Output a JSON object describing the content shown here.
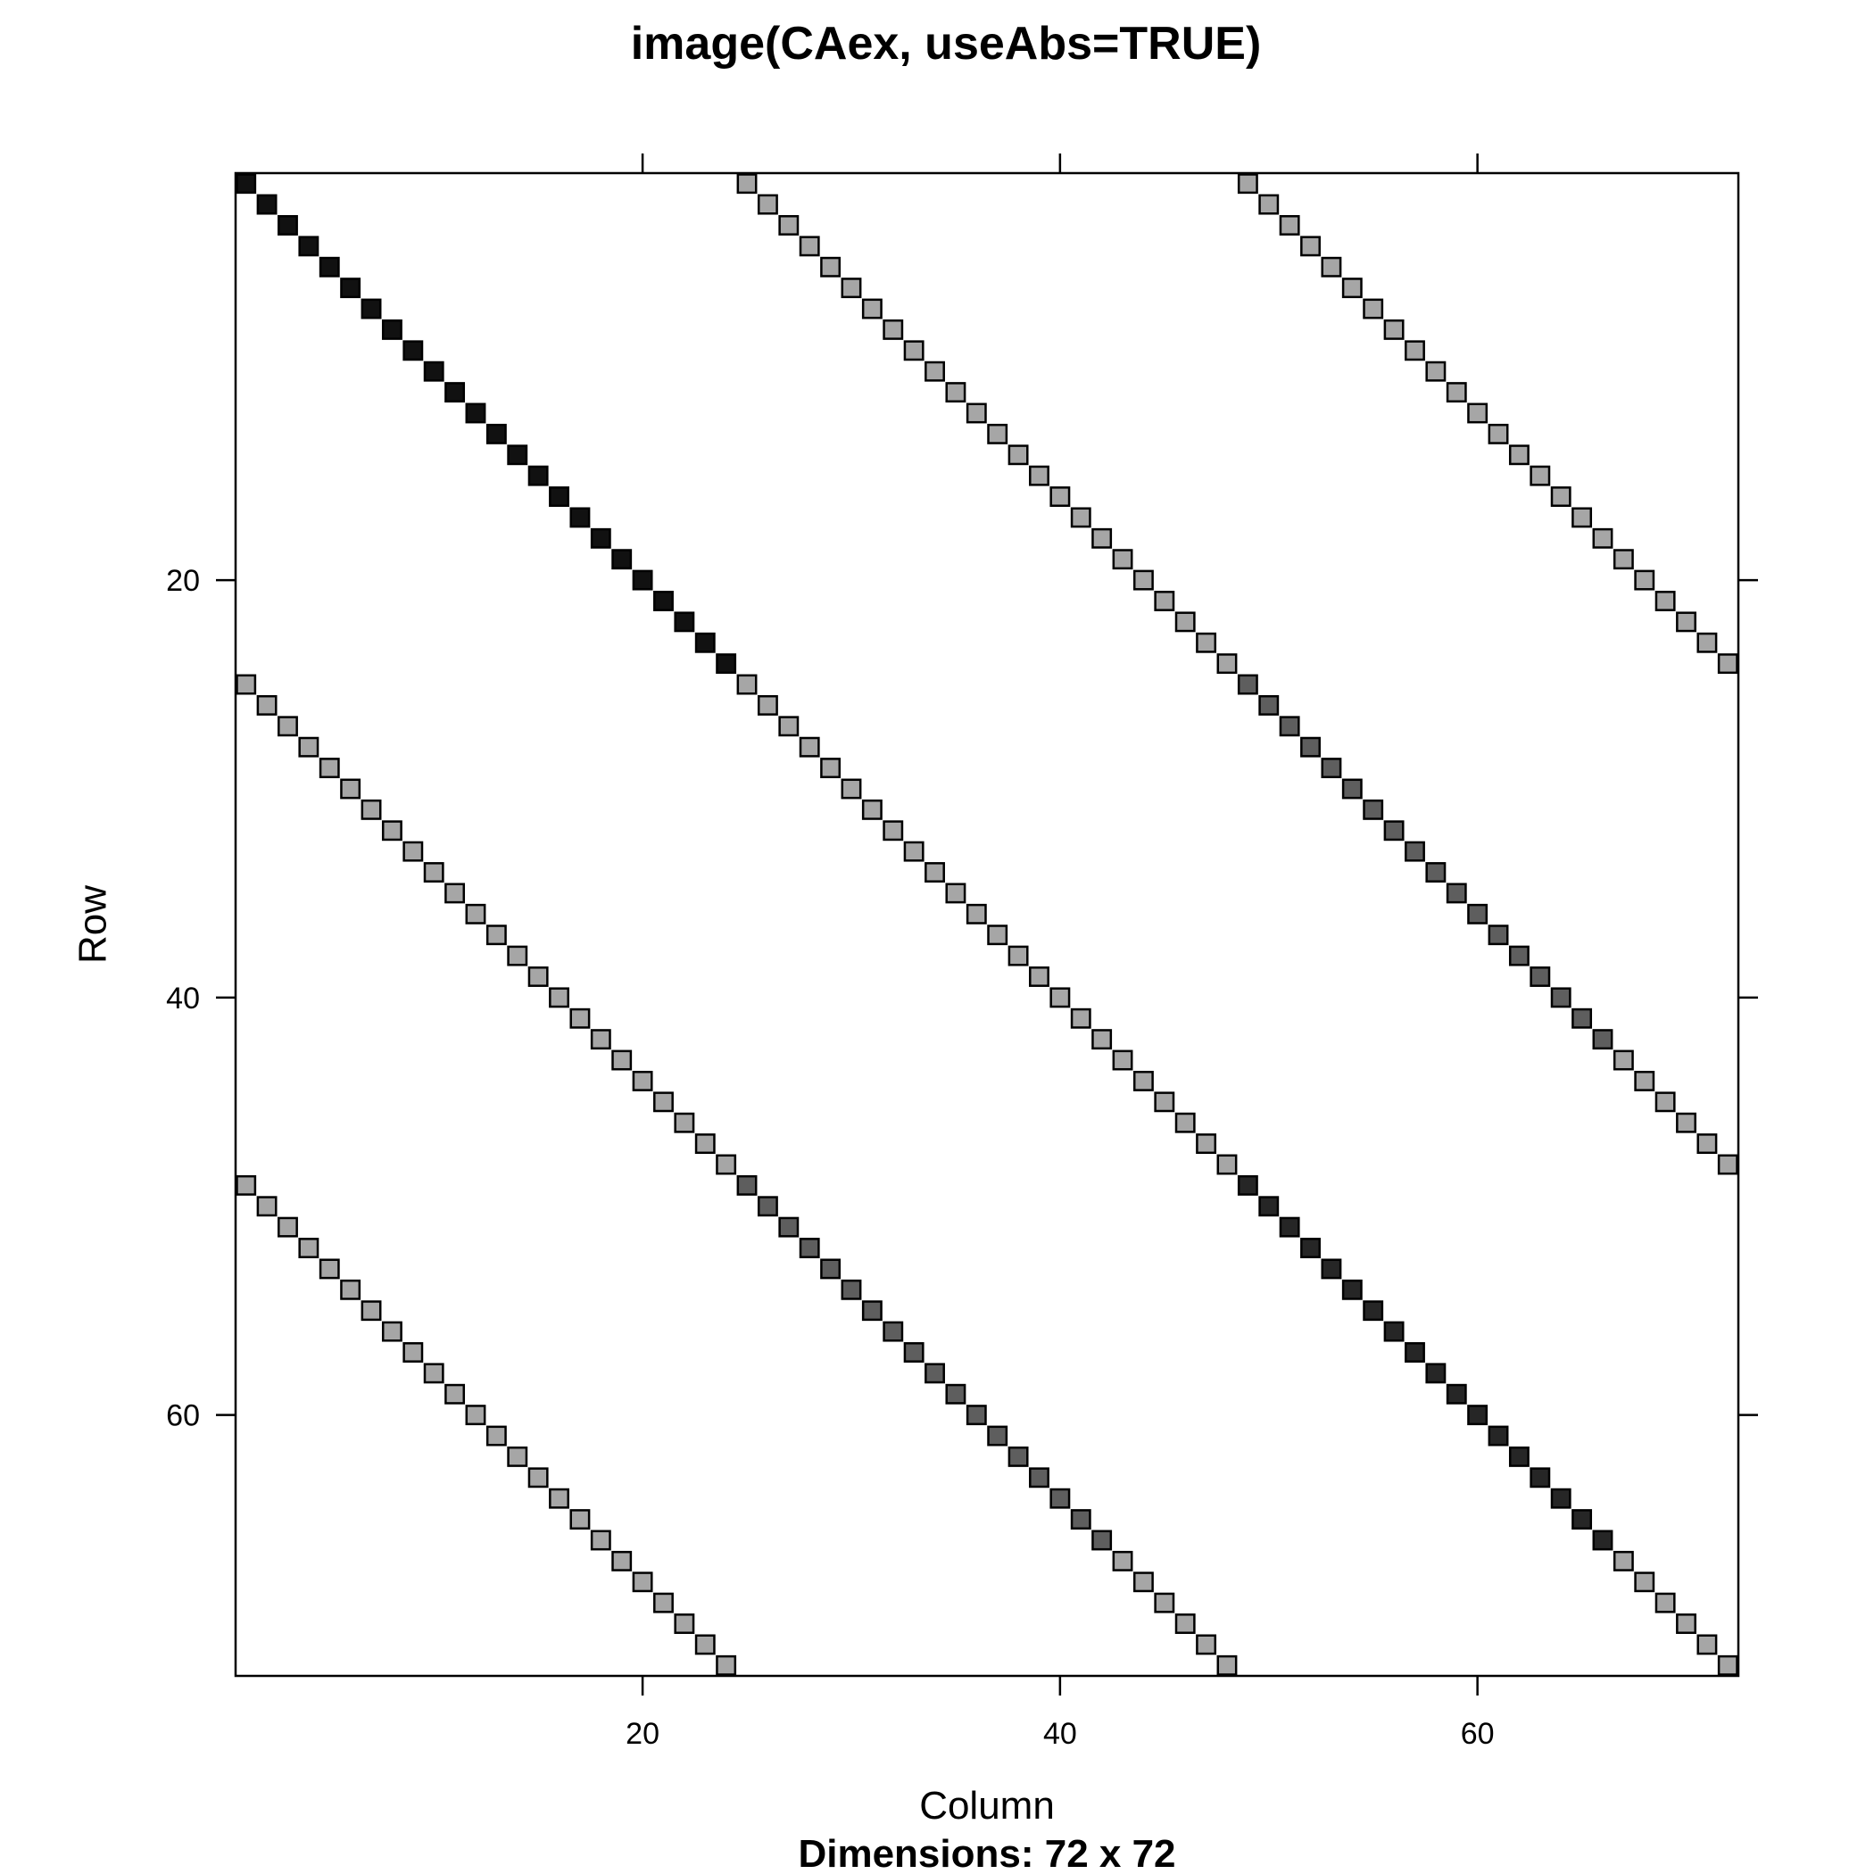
{
  "chart_data": {
    "type": "heatmap",
    "title": "image(CAex, useAbs=TRUE)",
    "xlabel": "Column",
    "ylabel": "Row",
    "sublabel": "Dimensions: 72 x 72",
    "nrow": 72,
    "ncol": 72,
    "x_ticks": [
      "20",
      "40",
      "60"
    ],
    "y_ticks": [
      "20",
      "40",
      "60"
    ],
    "x_tick_values": [
      20,
      40,
      60
    ],
    "y_tick_values": [
      20,
      40,
      60
    ],
    "colors": {
      "level_high": "#111111",
      "level_high_2": "#262626",
      "level_mid": "#5e5e5e",
      "level_low": "#a6a6a6",
      "cell_border": "#000000",
      "frame": "#000000"
    },
    "bands": [
      {
        "offset": 0,
        "segments": [
          [
            1,
            24,
            "level_high"
          ],
          [
            25,
            48,
            "level_low"
          ],
          [
            49,
            66,
            "level_high_2"
          ],
          [
            67,
            72,
            "level_low"
          ]
        ]
      },
      {
        "offset": 24,
        "segments": [
          [
            1,
            24,
            "level_low"
          ],
          [
            25,
            42,
            "level_mid"
          ],
          [
            43,
            48,
            "level_low"
          ]
        ]
      },
      {
        "offset": -24,
        "segments": [
          [
            1,
            24,
            "level_low"
          ],
          [
            25,
            42,
            "level_mid"
          ],
          [
            43,
            48,
            "level_low"
          ]
        ]
      },
      {
        "offset": 48,
        "segments": [
          [
            1,
            24,
            "level_low"
          ]
        ]
      },
      {
        "offset": -48,
        "segments": [
          [
            1,
            24,
            "level_low"
          ]
        ]
      }
    ]
  }
}
